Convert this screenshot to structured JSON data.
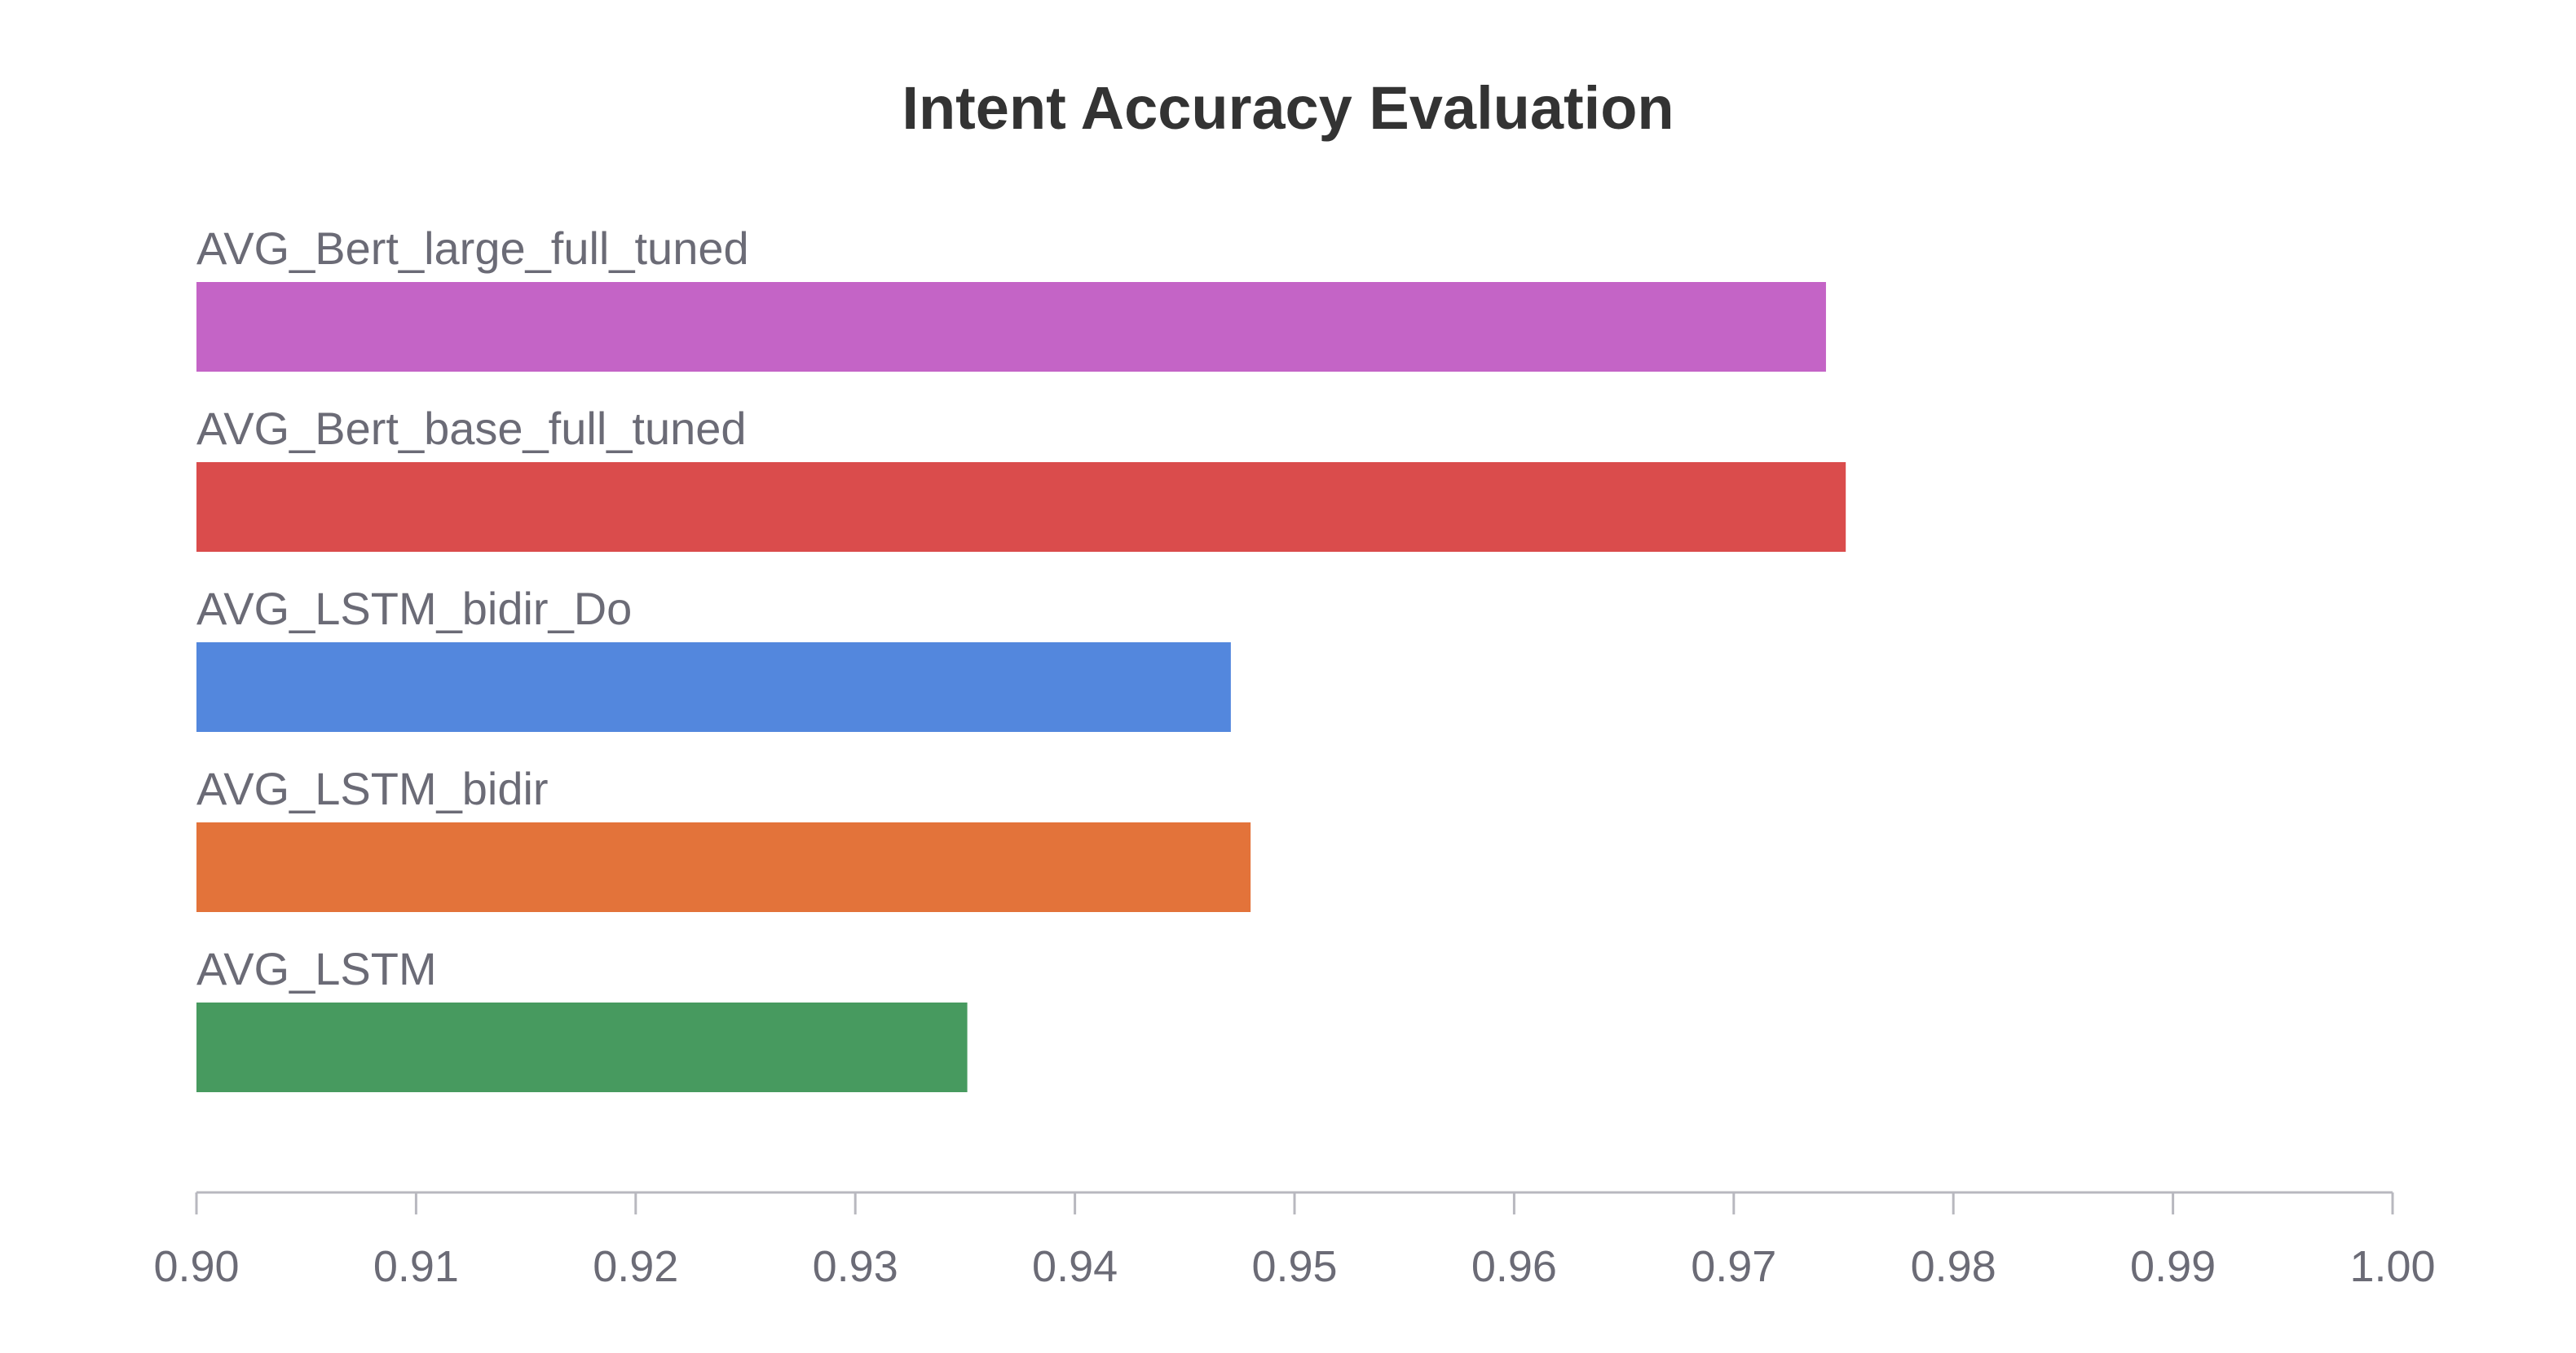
{
  "chart_data": {
    "type": "bar",
    "orientation": "horizontal",
    "title": "Intent Accuracy Evaluation",
    "xlabel": "",
    "ylabel": "",
    "categories": [
      "AVG_Bert_large_full_tuned",
      "AVG_Bert_base_full_tuned",
      "AVG_LSTM_bidir_Do",
      "AVG_LSTM_bidir",
      "AVG_LSTM"
    ],
    "values": [
      0.9742,
      0.9751,
      0.9471,
      0.948,
      0.9351
    ],
    "colors": [
      "#c464c6",
      "#da4c4c",
      "#5387dd",
      "#e3733a",
      "#479a5f"
    ],
    "xlim": [
      0.9,
      1.0
    ],
    "xticks": [
      "0.90",
      "0.91",
      "0.92",
      "0.93",
      "0.94",
      "0.95",
      "0.96",
      "0.97",
      "0.98",
      "0.99",
      "1.00"
    ],
    "grid": false,
    "legend": "none"
  }
}
